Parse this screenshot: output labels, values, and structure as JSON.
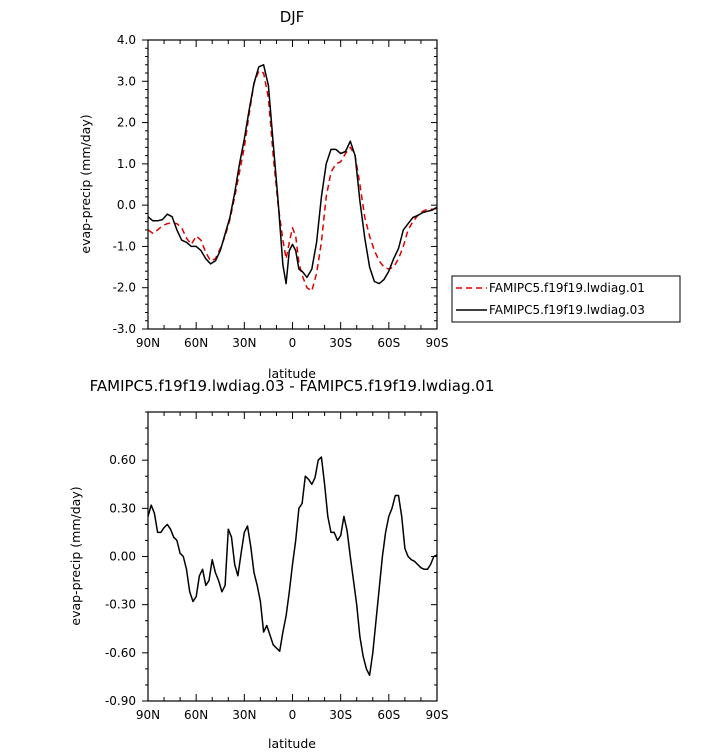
{
  "chart_data": [
    {
      "type": "line",
      "title": "DJF",
      "xlabel": "latitude",
      "ylabel": "evap-precip (mm/day)",
      "xlim": [
        90,
        -90
      ],
      "ylim": [
        -3.0,
        4.0
      ],
      "xticks": [
        90,
        60,
        30,
        0,
        -30,
        -60,
        -90
      ],
      "xticklabels": [
        "90N",
        "60N",
        "30N",
        "0",
        "30S",
        "60S",
        "90S"
      ],
      "yticks": [
        -3.0,
        -2.0,
        -1.0,
        0.0,
        1.0,
        2.0,
        3.0,
        4.0
      ],
      "yticklabels": [
        "-3.0",
        "-2.0",
        "-1.0",
        "0.0",
        "1.0",
        "2.0",
        "3.0",
        "4.0"
      ],
      "legend_position": "right",
      "series": [
        {
          "name": "FAMIPC5.f19f19.lwdiag.01",
          "color": "#dd0000",
          "dash": "dashed",
          "x": [
            90,
            87,
            84,
            81,
            78,
            75,
            72,
            69,
            66,
            63,
            60,
            57,
            54,
            51,
            48,
            45,
            42,
            39,
            36,
            33,
            30,
            27,
            24,
            21,
            18,
            15,
            12,
            9,
            6,
            4,
            2,
            0,
            -2,
            -4,
            -6,
            -9,
            -12,
            -15,
            -18,
            -21,
            -24,
            -27,
            -30,
            -33,
            -36,
            -39,
            -42,
            -45,
            -48,
            -51,
            -54,
            -57,
            -60,
            -63,
            -66,
            -69,
            -72,
            -75,
            -78,
            -81,
            -84,
            -87,
            -90
          ],
          "y": [
            -0.6,
            -0.68,
            -0.6,
            -0.5,
            -0.45,
            -0.42,
            -0.45,
            -0.55,
            -0.8,
            -0.95,
            -0.75,
            -0.85,
            -1.15,
            -1.35,
            -1.3,
            -1.05,
            -0.75,
            -0.35,
            0.2,
            0.8,
            1.4,
            2.2,
            2.95,
            3.25,
            3.2,
            2.6,
            1.2,
            0.0,
            -0.85,
            -1.3,
            -0.9,
            -0.55,
            -0.75,
            -1.4,
            -1.7,
            -2.0,
            -2.08,
            -1.65,
            -0.9,
            0.2,
            0.8,
            1.0,
            1.05,
            1.25,
            1.4,
            1.2,
            0.5,
            -0.3,
            -0.75,
            -1.1,
            -1.35,
            -1.5,
            -1.55,
            -1.5,
            -1.3,
            -1.0,
            -0.6,
            -0.4,
            -0.25,
            -0.15,
            -0.1,
            -0.1,
            -0.08
          ]
        },
        {
          "name": "FAMIPC5.f19f19.lwdiag.03",
          "color": "#000000",
          "dash": "solid",
          "x": [
            90,
            87,
            84,
            81,
            78,
            75,
            72,
            69,
            66,
            63,
            60,
            57,
            54,
            51,
            48,
            45,
            42,
            39,
            36,
            33,
            30,
            27,
            24,
            21,
            18,
            15,
            12,
            9,
            6,
            4,
            2,
            0,
            -2,
            -4,
            -6,
            -9,
            -12,
            -15,
            -18,
            -21,
            -24,
            -27,
            -30,
            -33,
            -36,
            -39,
            -42,
            -45,
            -48,
            -51,
            -54,
            -57,
            -60,
            -63,
            -66,
            -69,
            -72,
            -75,
            -78,
            -81,
            -84,
            -87,
            -90
          ],
          "y": [
            -0.28,
            -0.38,
            -0.38,
            -0.35,
            -0.22,
            -0.28,
            -0.6,
            -0.85,
            -0.9,
            -1.0,
            -1.0,
            -1.1,
            -1.3,
            -1.42,
            -1.35,
            -1.1,
            -0.7,
            -0.3,
            0.3,
            1.0,
            1.6,
            2.3,
            2.95,
            3.35,
            3.4,
            2.9,
            1.5,
            0.1,
            -1.45,
            -1.9,
            -1.1,
            -0.95,
            -1.1,
            -1.55,
            -1.6,
            -1.75,
            -1.55,
            -0.9,
            0.2,
            1.0,
            1.35,
            1.35,
            1.25,
            1.3,
            1.55,
            1.2,
            0.1,
            -0.8,
            -1.5,
            -1.85,
            -1.9,
            -1.8,
            -1.6,
            -1.3,
            -1.05,
            -0.6,
            -0.45,
            -0.3,
            -0.25,
            -0.18,
            -0.15,
            -0.12,
            -0.05
          ]
        }
      ]
    },
    {
      "type": "line",
      "title": "FAMIPC5.f19f19.lwdiag.03 - FAMIPC5.f19f19.lwdiag.01",
      "xlabel": "latitude",
      "ylabel": "evap-precip (mm/day)",
      "xlim": [
        90,
        -90
      ],
      "ylim": [
        -0.9,
        0.9
      ],
      "xticks": [
        90,
        60,
        30,
        0,
        -30,
        -60,
        -90
      ],
      "xticklabels": [
        "90N",
        "60N",
        "30N",
        "0",
        "30S",
        "60S",
        "90S"
      ],
      "yticks": [
        -0.9,
        -0.6,
        -0.3,
        0.0,
        0.3,
        0.6
      ],
      "yticklabels": [
        "-0.90",
        "-0.60",
        "-0.30",
        "0.00",
        "0.30",
        "0.60"
      ],
      "series": [
        {
          "color": "#000000",
          "dash": "solid",
          "x": [
            90,
            88,
            86,
            84,
            82,
            80,
            78,
            76,
            74,
            72,
            70,
            68,
            66,
            64,
            62,
            60,
            58,
            56,
            54,
            52,
            50,
            48,
            46,
            44,
            42,
            40,
            38,
            36,
            34,
            32,
            30,
            28,
            26,
            24,
            22,
            20,
            18,
            16,
            14,
            12,
            10,
            8,
            6,
            4,
            2,
            0,
            -2,
            -4,
            -6,
            -8,
            -10,
            -12,
            -14,
            -16,
            -18,
            -20,
            -22,
            -24,
            -26,
            -28,
            -30,
            -32,
            -34,
            -36,
            -38,
            -40,
            -42,
            -44,
            -46,
            -48,
            -50,
            -52,
            -54,
            -56,
            -58,
            -60,
            -62,
            -64,
            -66,
            -68,
            -70,
            -72,
            -74,
            -76,
            -78,
            -80,
            -82,
            -84,
            -86,
            -88,
            -90
          ],
          "y": [
            0.25,
            0.32,
            0.27,
            0.15,
            0.15,
            0.18,
            0.2,
            0.17,
            0.12,
            0.1,
            0.02,
            0.0,
            -0.08,
            -0.22,
            -0.28,
            -0.25,
            -0.12,
            -0.08,
            -0.18,
            -0.15,
            -0.02,
            -0.1,
            -0.15,
            -0.22,
            -0.18,
            0.17,
            0.12,
            -0.05,
            -0.12,
            0.02,
            0.15,
            0.19,
            0.06,
            -0.1,
            -0.18,
            -0.28,
            -0.47,
            -0.43,
            -0.49,
            -0.55,
            -0.57,
            -0.59,
            -0.47,
            -0.37,
            -0.22,
            -0.05,
            0.1,
            0.3,
            0.33,
            0.5,
            0.48,
            0.45,
            0.49,
            0.6,
            0.62,
            0.45,
            0.25,
            0.15,
            0.15,
            0.1,
            0.13,
            0.25,
            0.16,
            0.0,
            -0.15,
            -0.3,
            -0.5,
            -0.62,
            -0.7,
            -0.74,
            -0.6,
            -0.4,
            -0.2,
            0.0,
            0.15,
            0.25,
            0.3,
            0.38,
            0.38,
            0.25,
            0.05,
            0.0,
            -0.02,
            -0.03,
            -0.05,
            -0.07,
            -0.08,
            -0.08,
            -0.05,
            0.0,
            0.01
          ]
        }
      ]
    }
  ]
}
